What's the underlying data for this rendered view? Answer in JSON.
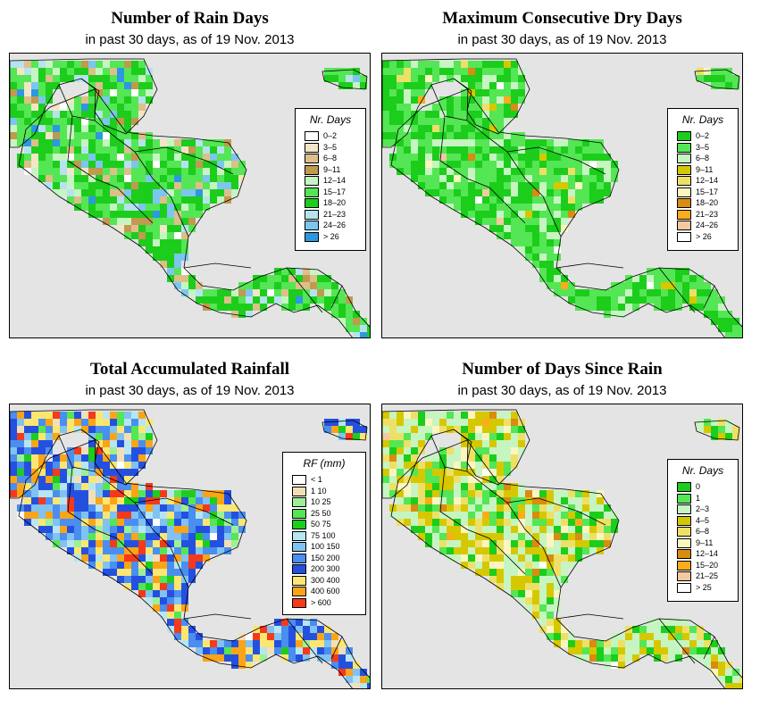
{
  "panels": [
    {
      "title": "Number of Rain Days",
      "subtitle": "in past 30 days, as of  19 Nov. 2013",
      "legend_title": "Nr. Days",
      "legend": [
        {
          "label": "0–2",
          "color": "#ffffff"
        },
        {
          "label": "3–5",
          "color": "#f3e6c6"
        },
        {
          "label": "6–8",
          "color": "#ddbf8a"
        },
        {
          "label": "9–11",
          "color": "#c09a4e"
        },
        {
          "label": "12–14",
          "color": "#c6f5c2"
        },
        {
          "label": "15–17",
          "color": "#54e654"
        },
        {
          "label": "18–20",
          "color": "#1ccd1c"
        },
        {
          "label": "21–23",
          "color": "#b6e2ee"
        },
        {
          "label": "24–26",
          "color": "#7cc6ee"
        },
        {
          "label": "> 26",
          "color": "#2c98e2"
        }
      ]
    },
    {
      "title": "Maximum Consecutive Dry Days",
      "subtitle": "in past 30 days, as of  19 Nov. 2013",
      "legend_title": "Nr. Days",
      "legend": [
        {
          "label": "0–2",
          "color": "#1ccd1c"
        },
        {
          "label": "3–5",
          "color": "#54e654"
        },
        {
          "label": "6–8",
          "color": "#c6f5c2"
        },
        {
          "label": "9–11",
          "color": "#d6c800"
        },
        {
          "label": "12–14",
          "color": "#eee066"
        },
        {
          "label": "15–17",
          "color": "#fbf6c0"
        },
        {
          "label": "18–20",
          "color": "#d88c10"
        },
        {
          "label": "21–23",
          "color": "#fbac1a"
        },
        {
          "label": "24–26",
          "color": "#f6c8a0"
        },
        {
          "label": "> 26",
          "color": "#ffffff"
        }
      ]
    },
    {
      "title": "Total Accumulated Rainfall",
      "subtitle": "in past 30 days, as of  19 Nov. 2013",
      "legend_title": "RF (mm)",
      "legend": [
        {
          "label": "< 1",
          "color": "#ffffff"
        },
        {
          "label": "1   10",
          "color": "#f3dfb6"
        },
        {
          "label": "10   25",
          "color": "#9ef096"
        },
        {
          "label": "25   50",
          "color": "#54e654"
        },
        {
          "label": "50   75",
          "color": "#1ccd1c"
        },
        {
          "label": "75   100",
          "color": "#b6e6f2"
        },
        {
          "label": "100   150",
          "color": "#80c2f2"
        },
        {
          "label": "150   200",
          "color": "#4a8ef0"
        },
        {
          "label": "200   300",
          "color": "#2450e0"
        },
        {
          "label": "300   400",
          "color": "#fbe672"
        },
        {
          "label": "400   600",
          "color": "#fba418"
        },
        {
          "label": "> 600",
          "color": "#f43a1a"
        }
      ]
    },
    {
      "title": "Number of Days Since Rain",
      "subtitle": "in past 30 days, as of  19 Nov. 2013",
      "legend_title": "Nr. Days",
      "legend": [
        {
          "label": "0",
          "color": "#1ccd1c"
        },
        {
          "label": "1",
          "color": "#54e654"
        },
        {
          "label": "2–3",
          "color": "#c6f5c2"
        },
        {
          "label": "4–5",
          "color": "#d6c800"
        },
        {
          "label": "6–8",
          "color": "#eee066"
        },
        {
          "label": "9–11",
          "color": "#fbf6c0"
        },
        {
          "label": "12–14",
          "color": "#d88c10"
        },
        {
          "label": "15–20",
          "color": "#fbac1a"
        },
        {
          "label": "21–25",
          "color": "#f6c8a0"
        },
        {
          "label": "> 25",
          "color": "#ffffff"
        }
      ]
    }
  ]
}
